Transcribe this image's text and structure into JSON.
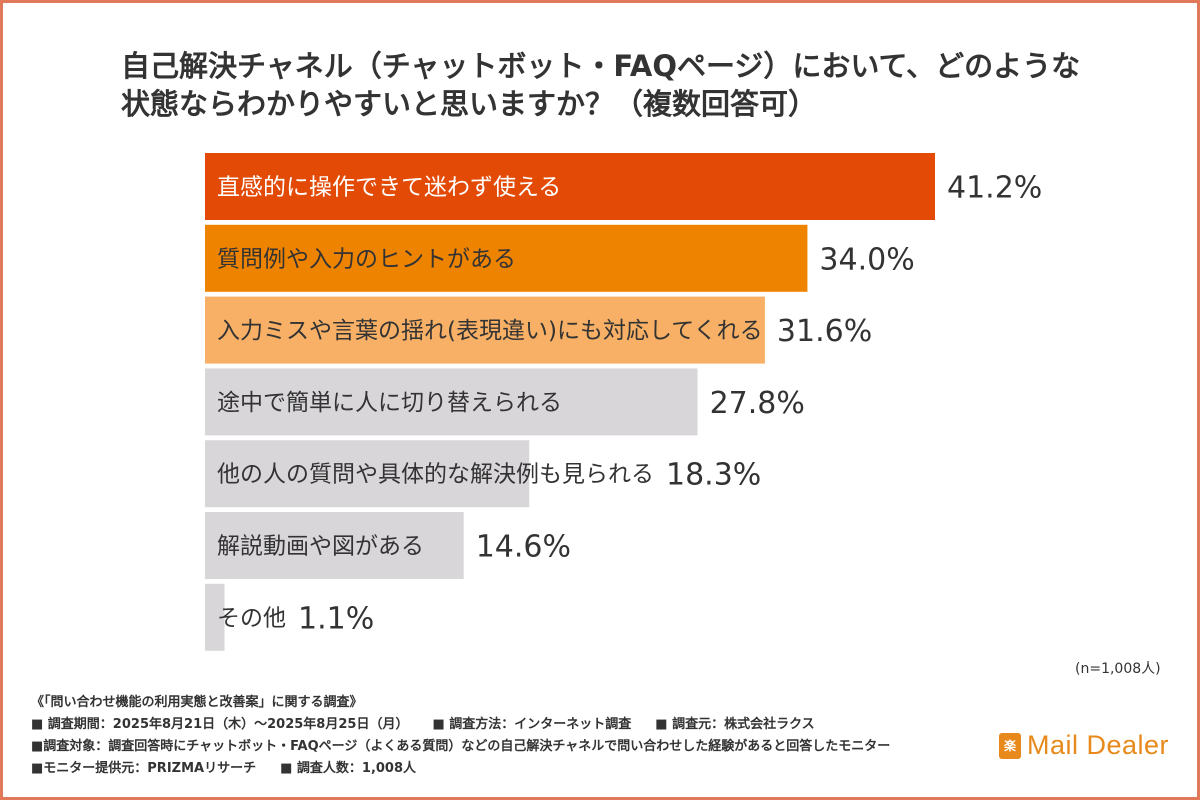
{
  "title_lines": [
    "自己解決チャネル（チャットボット・FAQページ）において、どのような",
    "状態ならわかりやすいと思いますか？（複数回答可）"
  ],
  "chart_data": {
    "type": "bar",
    "orientation": "horizontal",
    "categories": [
      "直感的に操作できて迷わず使える",
      "質問例や入力のヒントがある",
      "入力ミスや言葉の揺れ(表現違い)にも対応してくれる",
      "途中で簡単に人に切り替えられる",
      "他の人の質問や具体的な解決例も見られる",
      "解説動画や図がある",
      "その他"
    ],
    "values": [
      41.2,
      34.0,
      31.6,
      27.8,
      18.3,
      14.6,
      1.1
    ],
    "value_labels": [
      "41.2%",
      "34.0%",
      "31.6%",
      "27.8%",
      "18.3%",
      "14.6%",
      "1.1%"
    ],
    "bar_colors": [
      "#e24a05",
      "#ee8300",
      "#f7b066",
      "#d9d6da",
      "#d9d6da",
      "#d9d6da",
      "#d9d6da"
    ],
    "unit": "%",
    "xlim": [
      0,
      41.2
    ],
    "grid": false,
    "legend": "none"
  },
  "sample_note": "(n=1,008人)",
  "footer": {
    "survey_title": "《「問い合わせ機能の利用実態と改善案」に関する調査》",
    "period": "■ 調査期間：2025年8月21日（木）〜2025年8月25日（月）",
    "method": "■ 調査方法：インターネット調査",
    "organizer": "■ 調査元：株式会社ラクス",
    "target": "■調査対象：調査回答時にチャットボット・FAQページ（よくある質問）などの自己解決チャネルで問い合わせした経験があると回答したモニター",
    "provider": "■モニター提供元：PRIZMAリサーチ",
    "respondents": "■ 調査人数：1,008人"
  },
  "logo": {
    "badge": "楽",
    "text": "Mail Dealer",
    "color": "#e8891b"
  }
}
